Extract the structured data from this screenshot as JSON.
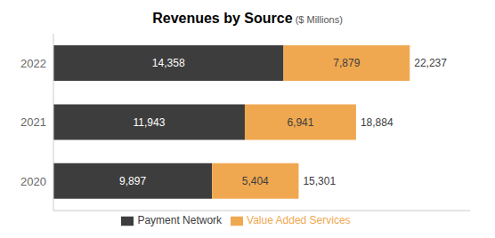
{
  "chart_data": {
    "type": "bar",
    "title": "Revenues by Source",
    "subtitle": " ($ Millions)",
    "orientation": "horizontal",
    "stacked": true,
    "data_labels": true,
    "grid": false,
    "legend": "bottom",
    "tick_labels": "y",
    "categories": [
      "2020",
      "2021",
      "2022"
    ],
    "xlim": [
      0,
      26000
    ],
    "series": [
      {
        "name": "Payment Network",
        "color": "#3d3d3d",
        "values": [
          9897,
          11943,
          14358
        ],
        "value_labels": [
          "9,897",
          "11,943",
          "14,358"
        ]
      },
      {
        "name": "Value Added Services",
        "color": "#f0a850",
        "values": [
          5404,
          6941,
          7879
        ],
        "value_labels": [
          "5,404",
          "6,941",
          "7,879"
        ]
      }
    ],
    "totals": [
      15301,
      18884,
      22237
    ],
    "total_labels": [
      "15,301",
      "18,884",
      "22,237"
    ]
  }
}
